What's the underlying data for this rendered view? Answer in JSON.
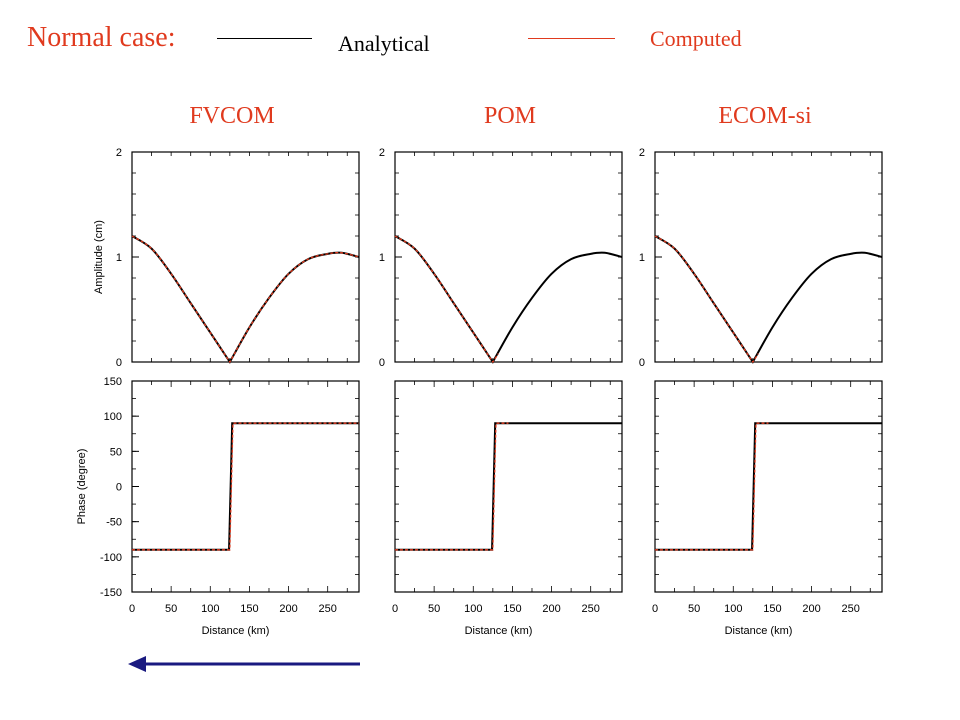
{
  "header": {
    "title": "Normal case:",
    "legend": [
      {
        "label": "Analytical",
        "color": "#000000"
      },
      {
        "label": "Computed",
        "color": "#e03a1e"
      }
    ]
  },
  "panel_titles": [
    "FVCOM",
    "POM",
    "ECOM-si"
  ],
  "colors": {
    "analytical": "#000000",
    "computed": "#e03a1e",
    "title": "#e03a1e",
    "arrow": "#1a1a80"
  },
  "direction_arrow": {
    "direction": "left",
    "icon": "left-arrow-icon"
  },
  "chart_data": [
    {
      "type": "line",
      "panel": "FVCOM",
      "ylabel": "Amplitude (cm)",
      "xlim": [
        0,
        290
      ],
      "ylim": [
        0,
        2
      ],
      "yticks": [
        0,
        1,
        2
      ],
      "series": [
        {
          "name": "Analytical",
          "x": [
            0,
            25,
            50,
            75,
            100,
            125,
            150,
            175,
            200,
            225,
            250,
            268,
            290
          ],
          "values": [
            1.2,
            1.08,
            0.84,
            0.56,
            0.28,
            0.0,
            0.33,
            0.61,
            0.84,
            0.98,
            1.03,
            1.04,
            1.0
          ]
        },
        {
          "name": "Computed",
          "x": [
            0,
            25,
            50,
            75,
            100,
            125,
            150,
            175,
            200,
            225,
            250,
            268,
            290
          ],
          "values": [
            1.2,
            1.08,
            0.84,
            0.56,
            0.28,
            0.0,
            0.33,
            0.61,
            0.84,
            0.98,
            1.03,
            1.04,
            1.0
          ]
        }
      ]
    },
    {
      "type": "line",
      "panel": "POM",
      "xlim": [
        0,
        290
      ],
      "ylim": [
        0,
        2
      ],
      "yticks": [
        0,
        1,
        2
      ],
      "series": [
        {
          "name": "Analytical",
          "x": [
            0,
            25,
            50,
            75,
            100,
            125,
            150,
            175,
            200,
            225,
            250,
            268,
            290
          ],
          "values": [
            1.2,
            1.08,
            0.84,
            0.56,
            0.28,
            0.0,
            0.33,
            0.61,
            0.84,
            0.98,
            1.03,
            1.04,
            1.0
          ]
        },
        {
          "name": "Computed",
          "x": [
            0,
            25,
            50,
            75,
            100,
            125,
            132
          ],
          "values": [
            1.2,
            1.08,
            0.84,
            0.56,
            0.28,
            0.0,
            0.08
          ]
        }
      ]
    },
    {
      "type": "line",
      "panel": "ECOM-si",
      "xlim": [
        0,
        290
      ],
      "ylim": [
        0,
        2
      ],
      "yticks": [
        0,
        1,
        2
      ],
      "series": [
        {
          "name": "Analytical",
          "x": [
            0,
            25,
            50,
            75,
            100,
            125,
            150,
            175,
            200,
            225,
            250,
            268,
            290
          ],
          "values": [
            1.2,
            1.08,
            0.84,
            0.56,
            0.28,
            0.0,
            0.33,
            0.61,
            0.84,
            0.98,
            1.03,
            1.04,
            1.0
          ]
        },
        {
          "name": "Computed",
          "x": [
            0,
            25,
            50,
            75,
            100,
            125,
            132
          ],
          "values": [
            1.2,
            1.08,
            0.84,
            0.56,
            0.28,
            0.0,
            0.08
          ]
        }
      ]
    },
    {
      "type": "line",
      "panel": "FVCOM",
      "xlabel": "Distance (km)",
      "ylabel": "Phase (degree)",
      "xlim": [
        0,
        290
      ],
      "ylim": [
        -150,
        150
      ],
      "xticks": [
        0,
        50,
        100,
        150,
        200,
        250
      ],
      "yticks": [
        -150,
        -100,
        -50,
        0,
        50,
        100,
        150
      ],
      "series": [
        {
          "name": "Analytical",
          "x": [
            0,
            124,
            128,
            290
          ],
          "values": [
            -90,
            -90,
            90,
            90
          ]
        },
        {
          "name": "Computed",
          "x": [
            0,
            125,
            129,
            290
          ],
          "values": [
            -90,
            -90,
            90,
            90
          ]
        }
      ]
    },
    {
      "type": "line",
      "panel": "POM",
      "xlabel": "Distance (km)",
      "xlim": [
        0,
        290
      ],
      "ylim": [
        -150,
        150
      ],
      "xticks": [
        0,
        50,
        100,
        150,
        200,
        250
      ],
      "series": [
        {
          "name": "Analytical",
          "x": [
            0,
            124,
            128,
            290
          ],
          "values": [
            -90,
            -90,
            90,
            90
          ]
        },
        {
          "name": "Computed",
          "x": [
            0,
            125,
            129,
            145
          ],
          "values": [
            -90,
            -90,
            90,
            90
          ]
        }
      ]
    },
    {
      "type": "line",
      "panel": "ECOM-si",
      "xlabel": "Distance (km)",
      "xlim": [
        0,
        290
      ],
      "ylim": [
        -150,
        150
      ],
      "xticks": [
        0,
        50,
        100,
        150,
        200,
        250
      ],
      "series": [
        {
          "name": "Analytical",
          "x": [
            0,
            124,
            128,
            290
          ],
          "values": [
            -90,
            -90,
            90,
            90
          ]
        },
        {
          "name": "Computed",
          "x": [
            0,
            125,
            129,
            145
          ],
          "values": [
            -90,
            -90,
            90,
            90
          ]
        }
      ]
    }
  ]
}
